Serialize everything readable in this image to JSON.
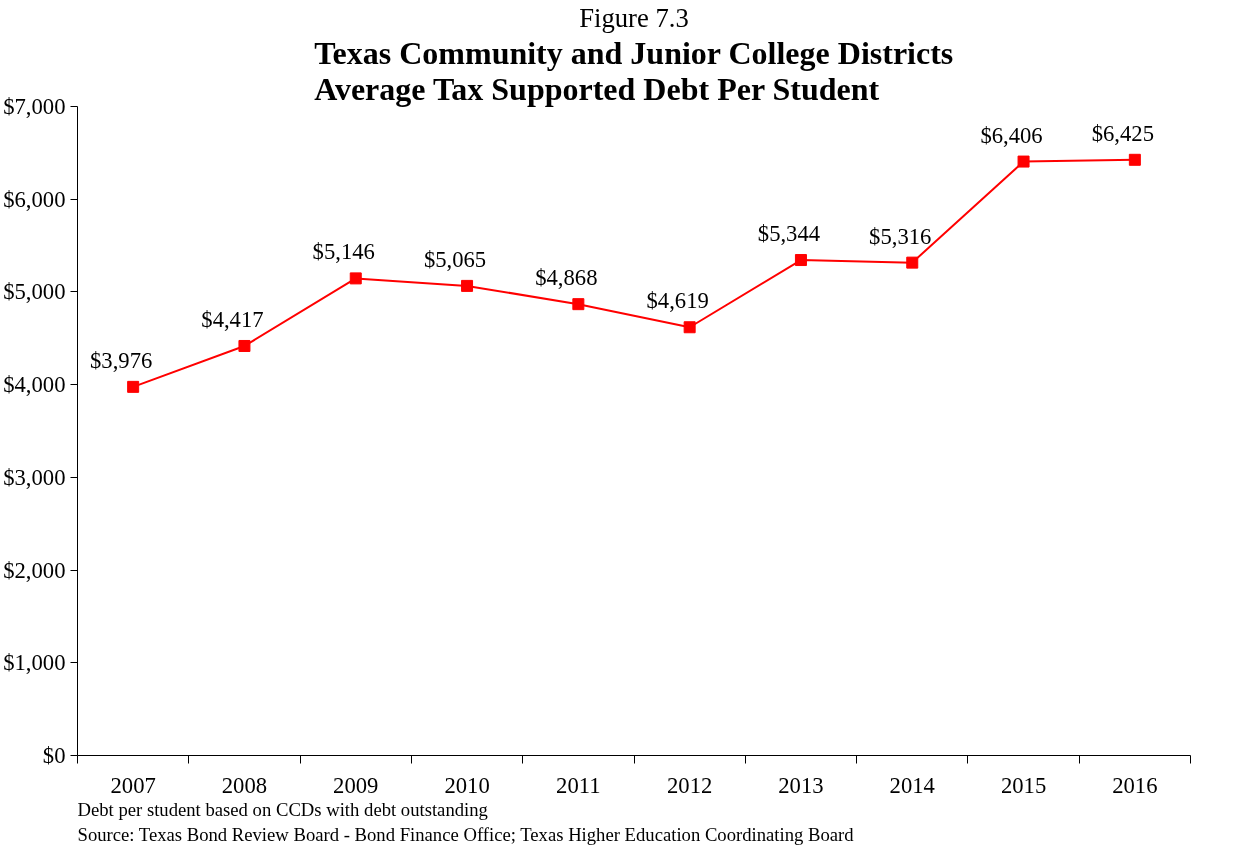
{
  "chart_data": {
    "type": "line",
    "title": "Figure 7.3",
    "subtitle": "Texas Community and Junior College Districts\nAverage Tax Supported Debt Per Student",
    "categories": [
      "2007",
      "2008",
      "2009",
      "2010",
      "2011",
      "2012",
      "2013",
      "2014",
      "2015",
      "2016"
    ],
    "series": [
      {
        "color": "#ff0000",
        "values": [
          3976,
          4417,
          5146,
          5065,
          4868,
          4619,
          5344,
          5316,
          6406,
          6425
        ],
        "value_labels": [
          "$3,976",
          "$4,417",
          "$5,146",
          "$5,065",
          "$4,868",
          "$4,619",
          "$5,344",
          "$5,316",
          "$6,406",
          "$6,425"
        ]
      }
    ],
    "ylim": [
      0,
      7000
    ],
    "yticks": [
      {
        "value": 0,
        "label": "$0"
      },
      {
        "value": 1000,
        "label": "$1,000"
      },
      {
        "value": 2000,
        "label": "$2,000"
      },
      {
        "value": 3000,
        "label": "$3,000"
      },
      {
        "value": 4000,
        "label": "$4,000"
      },
      {
        "value": 5000,
        "label": "$5,000"
      },
      {
        "value": 6000,
        "label": "$6,000"
      },
      {
        "value": 7000,
        "label": "$7,000"
      }
    ],
    "grid": false,
    "marker": "square",
    "line_style": "solid",
    "annotations": [
      "Debt per student based on CCDs with debt outstanding",
      "Source:  Texas Bond Review Board - Bond Finance Office;  Texas Higher Education Coordinating Board"
    ]
  }
}
